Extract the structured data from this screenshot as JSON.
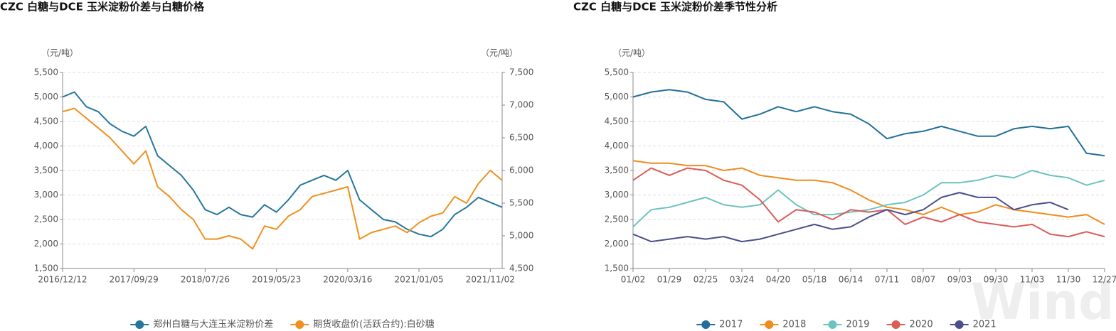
{
  "chart_data": [
    {
      "type": "line",
      "title": "CZC 白糖与DCE 玉米淀粉价差与白糖价格",
      "y_label": "（元/吨）",
      "y2_label": "（元/吨）",
      "categories": [
        "2016/12/12",
        null,
        null,
        null,
        null,
        null,
        "2017/09/29",
        null,
        null,
        null,
        null,
        null,
        "2018/07/26",
        null,
        null,
        null,
        null,
        null,
        "2019/05/23",
        null,
        null,
        null,
        null,
        null,
        "2020/03/16",
        null,
        null,
        null,
        null,
        null,
        "2021/01/05",
        null,
        null,
        null,
        null,
        null,
        "2021/11/02",
        null
      ],
      "series": [
        {
          "name": "郑州白糖与大连玉米淀粉价差",
          "color": "#27779c",
          "values": [
            5000,
            5100,
            4800,
            4700,
            4450,
            4300,
            4200,
            4400,
            3800,
            3600,
            3400,
            3100,
            2700,
            2600,
            2750,
            2600,
            2550,
            2800,
            2650,
            2900,
            3200,
            3300,
            3400,
            3300,
            3500,
            2900,
            2700,
            2500,
            2450,
            2300,
            2200,
            2150,
            2300,
            2600,
            2750,
            2950,
            2850,
            2750
          ]
        },
        {
          "name": "期货收盘价(活跃合约):白砂糖",
          "color": "#f0901f",
          "axis": "y2",
          "values": [
            6900,
            6950,
            6800,
            6650,
            6500,
            6300,
            6100,
            6300,
            5750,
            5600,
            5400,
            5250,
            4950,
            4950,
            5000,
            4950,
            4800,
            5150,
            5100,
            5300,
            5400,
            5600,
            5650,
            5700,
            5750,
            4950,
            5050,
            5100,
            5150,
            5050,
            5200,
            5300,
            5350,
            5600,
            5500,
            5800,
            6000,
            5850
          ]
        }
      ],
      "ylim": [
        1500,
        5500
      ],
      "yticks": [
        {
          "value": 1500,
          "label": "1,500"
        },
        {
          "value": 2000,
          "label": "2,000"
        },
        {
          "value": 2500,
          "label": "2,500"
        },
        {
          "value": 3000,
          "label": "3,000"
        },
        {
          "value": 3500,
          "label": "3,500"
        },
        {
          "value": 4000,
          "label": "4,000"
        },
        {
          "value": 4500,
          "label": "4,500"
        },
        {
          "value": 5000,
          "label": "5,000"
        },
        {
          "value": 5500,
          "label": "5,500"
        }
      ],
      "y2lim": [
        4500,
        7500
      ],
      "y2ticks": [
        {
          "value": 4500,
          "label": "4,500"
        },
        {
          "value": 5000,
          "label": "5,000"
        },
        {
          "value": 5500,
          "label": "5,500"
        },
        {
          "value": 6000,
          "label": "6,000"
        },
        {
          "value": 6500,
          "label": "6,500"
        },
        {
          "value": 7000,
          "label": "7,000"
        },
        {
          "value": 7500,
          "label": "7,500"
        }
      ],
      "grid": true,
      "legend": "bottom"
    },
    {
      "type": "line",
      "title": "CZC 白糖与DCE 玉米淀粉价差季节性分析",
      "y_label": "（元/吨）",
      "watermark": "Wind",
      "categories": [
        "01/02",
        null,
        "01/29",
        null,
        "02/25",
        null,
        "03/24",
        null,
        "04/20",
        null,
        "05/18",
        null,
        "06/14",
        null,
        "07/11",
        null,
        "08/07",
        null,
        "09/03",
        null,
        "09/30",
        null,
        "11/03",
        null,
        "11/30",
        null,
        "12/27"
      ],
      "series": [
        {
          "name": "2017",
          "color": "#22709a",
          "values": [
            5000,
            5100,
            5150,
            5100,
            4950,
            4900,
            4550,
            4650,
            4800,
            4700,
            4800,
            4700,
            4650,
            4450,
            4150,
            4250,
            4300,
            4400,
            4300,
            4200,
            4200,
            4350,
            4400,
            4350,
            4400,
            3850,
            3800
          ]
        },
        {
          "name": "2018",
          "color": "#f08c1e",
          "values": [
            3700,
            3650,
            3650,
            3600,
            3600,
            3500,
            3550,
            3400,
            3350,
            3300,
            3300,
            3250,
            3100,
            2900,
            2750,
            2700,
            2600,
            2750,
            2600,
            2650,
            2800,
            2700,
            2650,
            2600,
            2550,
            2600,
            2400
          ]
        },
        {
          "name": "2019",
          "color": "#6cc3c0",
          "values": [
            2350,
            2700,
            2750,
            2850,
            2950,
            2800,
            2750,
            2800,
            3100,
            2800,
            2600,
            2600,
            2650,
            2700,
            2800,
            2850,
            3000,
            3250,
            3250,
            3300,
            3400,
            3350,
            3500,
            3400,
            3350,
            3200,
            3300
          ]
        },
        {
          "name": "2020",
          "color": "#dc5b5b",
          "values": [
            3300,
            3550,
            3400,
            3550,
            3500,
            3300,
            3200,
            2900,
            2450,
            2700,
            2650,
            2500,
            2700,
            2650,
            2700,
            2400,
            2550,
            2450,
            2600,
            2450,
            2400,
            2350,
            2400,
            2200,
            2150,
            2250,
            2150
          ]
        },
        {
          "name": "2021",
          "color": "#4a4f8c",
          "values": [
            2200,
            2050,
            2100,
            2150,
            2100,
            2150,
            2050,
            2100,
            2200,
            2300,
            2400,
            2300,
            2350,
            2550,
            2700,
            2600,
            2700,
            2950,
            3050,
            2950,
            2950,
            2700,
            2800,
            2850,
            2700,
            null,
            null
          ]
        }
      ],
      "ylim": [
        1500,
        5500
      ],
      "yticks": [
        {
          "value": 1500,
          "label": "1,500"
        },
        {
          "value": 2000,
          "label": "2,000"
        },
        {
          "value": 2500,
          "label": "2,500"
        },
        {
          "value": 3000,
          "label": "3,000"
        },
        {
          "value": 3500,
          "label": "3,500"
        },
        {
          "value": 4000,
          "label": "4,000"
        },
        {
          "value": 4500,
          "label": "4,500"
        },
        {
          "value": 5000,
          "label": "5,000"
        },
        {
          "value": 5500,
          "label": "5,500"
        }
      ],
      "grid": true,
      "legend": "bottom"
    }
  ]
}
